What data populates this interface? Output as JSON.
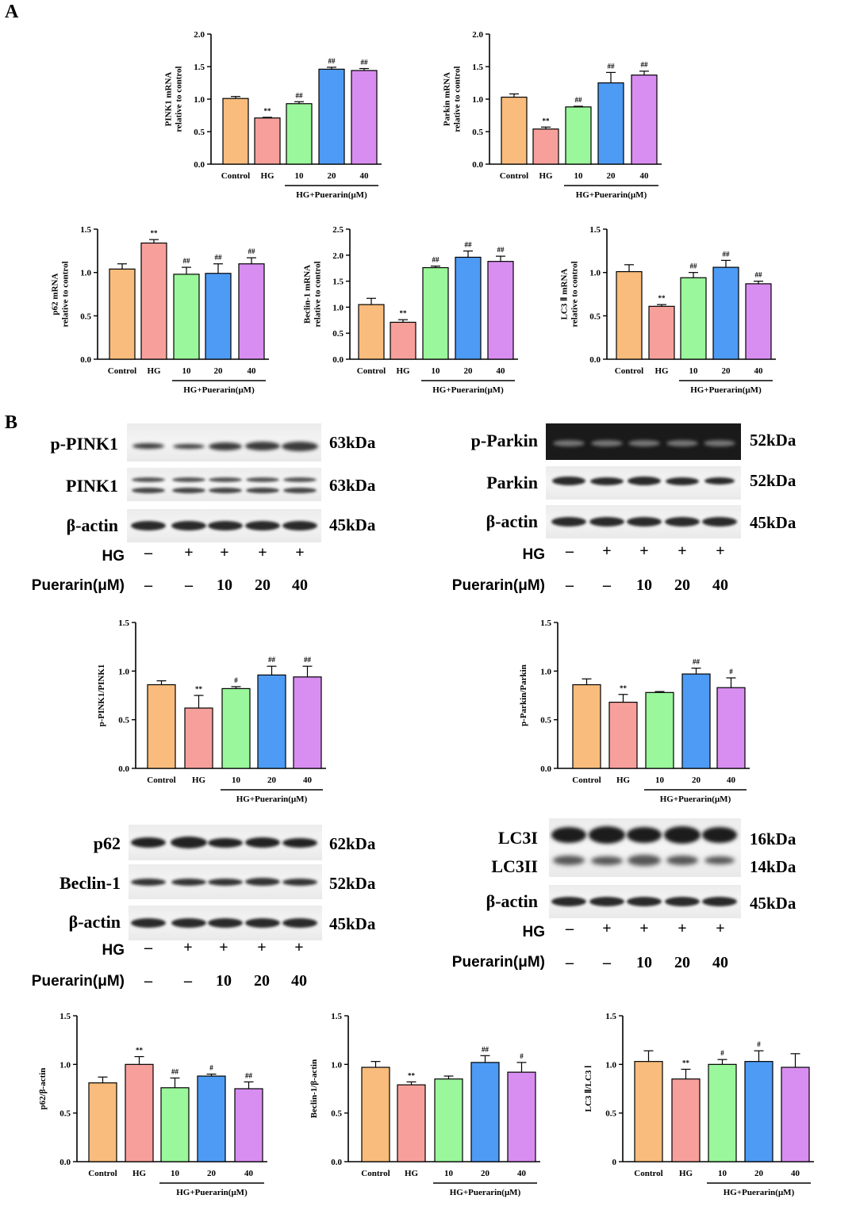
{
  "panels": {
    "a": "A",
    "b": "B"
  },
  "treatment_labels": {
    "hg": "HG",
    "puerarin": "Puerarin(μM)"
  },
  "treatment_values": {
    "hg": [
      "–",
      "+",
      "+",
      "+",
      "+"
    ],
    "puerarin": [
      "–",
      "–",
      "10",
      "20",
      "40"
    ]
  },
  "blots": {
    "pink1": {
      "rows": [
        {
          "label": "p-PINK1",
          "kda": "63kDa"
        },
        {
          "label": "PINK1",
          "kda": "63kDa"
        },
        {
          "label": "β-actin",
          "kda": "45kDa"
        }
      ]
    },
    "parkin": {
      "rows": [
        {
          "label": "p-Parkin",
          "kda": "52kDa"
        },
        {
          "label": "Parkin",
          "kda": "52kDa"
        },
        {
          "label": "β-actin",
          "kda": "45kDa"
        }
      ]
    },
    "p62": {
      "rows": [
        {
          "label": "p62",
          "kda": "62kDa"
        },
        {
          "label": "Beclin-1",
          "kda": "52kDa"
        },
        {
          "label": "β-actin",
          "kda": "45kDa"
        }
      ]
    },
    "lc3": {
      "rows": [
        {
          "label": "LC3I",
          "kda": "16kDa"
        },
        {
          "label": "LC3II",
          "kda": "14kDa"
        },
        {
          "label": "β-actin",
          "kda": "45kDa"
        }
      ]
    }
  },
  "colors": {
    "control": "#F9BC7C",
    "hg": "#F7A09B",
    "p10": "#9AF79B",
    "p20": "#4D9BF4",
    "p40": "#D88EF1"
  },
  "chart_data": [
    {
      "type": "bar",
      "ylabel": [
        "PINK1 mRNA",
        "relative to control"
      ],
      "categories": [
        "Control",
        "HG",
        "10",
        "20",
        "40"
      ],
      "group_label": "HG+Puerarin(μM)",
      "values": [
        1.01,
        0.71,
        0.93,
        1.46,
        1.44
      ],
      "errors": [
        0.03,
        0.01,
        0.03,
        0.03,
        0.03
      ],
      "annotations": [
        "",
        "**",
        "##",
        "##",
        "##"
      ],
      "ylim": [
        0,
        2.0
      ],
      "yticks": [
        "0.0",
        "0.5",
        "1.0",
        "1.5",
        "2.0"
      ]
    },
    {
      "type": "bar",
      "ylabel": [
        "Parkin mRNA",
        "relative to control"
      ],
      "categories": [
        "Control",
        "HG",
        "10",
        "20",
        "40"
      ],
      "group_label": "HG+Puerarin(μM)",
      "values": [
        1.03,
        0.54,
        0.88,
        1.25,
        1.37
      ],
      "errors": [
        0.05,
        0.03,
        0.01,
        0.16,
        0.06
      ],
      "annotations": [
        "",
        "**",
        "##",
        "##",
        "##"
      ],
      "ylim": [
        0,
        2.0
      ],
      "yticks": [
        "0.0",
        "0.5",
        "1.0",
        "1.5",
        "2.0"
      ]
    },
    {
      "type": "bar",
      "ylabel": [
        "p62 mRNA",
        "relative to control"
      ],
      "categories": [
        "Control",
        "HG",
        "10",
        "20",
        "40"
      ],
      "group_label": "HG+Puerarin(μM)",
      "values": [
        1.04,
        1.34,
        0.98,
        0.99,
        1.1
      ],
      "errors": [
        0.06,
        0.04,
        0.08,
        0.11,
        0.07
      ],
      "annotations": [
        "",
        "**",
        "##",
        "##",
        "##"
      ],
      "ylim": [
        0,
        1.5
      ],
      "yticks": [
        "0.0",
        "0.5",
        "1.0",
        "1.5"
      ]
    },
    {
      "type": "bar",
      "ylabel": [
        "Beclin-1 mRNA",
        "relative to control"
      ],
      "categories": [
        "Control",
        "HG",
        "10",
        "20",
        "40"
      ],
      "group_label": "HG+Puerarin(μM)",
      "values": [
        1.05,
        0.71,
        1.76,
        1.96,
        1.88
      ],
      "errors": [
        0.12,
        0.05,
        0.03,
        0.12,
        0.1
      ],
      "annotations": [
        "",
        "**",
        "##",
        "##",
        "##"
      ],
      "ylim": [
        0,
        2.5
      ],
      "yticks": [
        "0.0",
        "0.5",
        "1.0",
        "1.5",
        "2.0",
        "2.5"
      ]
    },
    {
      "type": "bar",
      "ylabel": [
        "LC3 Ⅱ mRNA",
        "relative to control"
      ],
      "categories": [
        "Control",
        "HG",
        "10",
        "20",
        "40"
      ],
      "group_label": "HG+Puerarin(μM)",
      "values": [
        1.01,
        0.61,
        0.94,
        1.06,
        0.87
      ],
      "errors": [
        0.08,
        0.02,
        0.06,
        0.08,
        0.03
      ],
      "annotations": [
        "",
        "**",
        "##",
        "##",
        "##"
      ],
      "ylim": [
        0,
        1.5
      ],
      "yticks": [
        "0.0",
        "0.5",
        "1.0",
        "1.5"
      ]
    },
    {
      "type": "bar",
      "ylabel": [
        "p-PINK1/PINK1"
      ],
      "categories": [
        "Control",
        "HG",
        "10",
        "20",
        "40"
      ],
      "group_label": "HG+Puerarin(μM)",
      "values": [
        0.86,
        0.62,
        0.82,
        0.96,
        0.94
      ],
      "errors": [
        0.04,
        0.13,
        0.02,
        0.09,
        0.11
      ],
      "annotations": [
        "",
        "**",
        "#",
        "##",
        "##"
      ],
      "ylim": [
        0,
        1.5
      ],
      "yticks": [
        "0.0",
        "0.5",
        "1.0",
        "1.5"
      ]
    },
    {
      "type": "bar",
      "ylabel": [
        "p-Parkin/Parkin"
      ],
      "categories": [
        "Control",
        "HG",
        "10",
        "20",
        "40"
      ],
      "group_label": "HG+Puerarin(μM)",
      "values": [
        0.86,
        0.68,
        0.78,
        0.97,
        0.83
      ],
      "errors": [
        0.06,
        0.08,
        0.01,
        0.06,
        0.1
      ],
      "annotations": [
        "",
        "**",
        "",
        "##",
        "#"
      ],
      "ylim": [
        0,
        1.5
      ],
      "yticks": [
        "0.0",
        "0.5",
        "1.0",
        "1.5"
      ]
    },
    {
      "type": "bar",
      "ylabel": [
        "p62/β-actin"
      ],
      "categories": [
        "Control",
        "HG",
        "10",
        "20",
        "40"
      ],
      "group_label": "HG+Puerarin(μM)",
      "values": [
        0.81,
        1.0,
        0.76,
        0.88,
        0.75
      ],
      "errors": [
        0.06,
        0.08,
        0.1,
        0.02,
        0.07
      ],
      "annotations": [
        "",
        "**",
        "##",
        "#",
        "##"
      ],
      "ylim": [
        0,
        1.5
      ],
      "yticks": [
        "0.0",
        "0.5",
        "1.0",
        "1.5"
      ]
    },
    {
      "type": "bar",
      "ylabel": [
        "Beclin-1/β-actin"
      ],
      "categories": [
        "Control",
        "HG",
        "10",
        "20",
        "40"
      ],
      "group_label": "HG+Puerarin(μM)",
      "values": [
        0.97,
        0.79,
        0.85,
        1.02,
        0.92
      ],
      "errors": [
        0.06,
        0.03,
        0.03,
        0.07,
        0.1
      ],
      "annotations": [
        "",
        "**",
        "",
        "##",
        "#"
      ],
      "ylim": [
        0,
        1.5
      ],
      "yticks": [
        "0.0",
        "0.5",
        "1.0",
        "1.5"
      ]
    },
    {
      "type": "bar",
      "ylabel": [
        "LC3 Ⅱ/LC3 Ⅰ"
      ],
      "categories": [
        "Control",
        "HG",
        "10",
        "20",
        "40"
      ],
      "group_label": "HG+Puerarin(μM)",
      "values": [
        1.03,
        0.85,
        1.0,
        1.03,
        0.97
      ],
      "errors": [
        0.11,
        0.1,
        0.05,
        0.11,
        0.14
      ],
      "annotations": [
        "",
        "**",
        "#",
        "#",
        ""
      ],
      "ylim": [
        0,
        1.5
      ],
      "yticks": [
        "0",
        "0.5",
        "1.0",
        "1.5"
      ]
    }
  ]
}
